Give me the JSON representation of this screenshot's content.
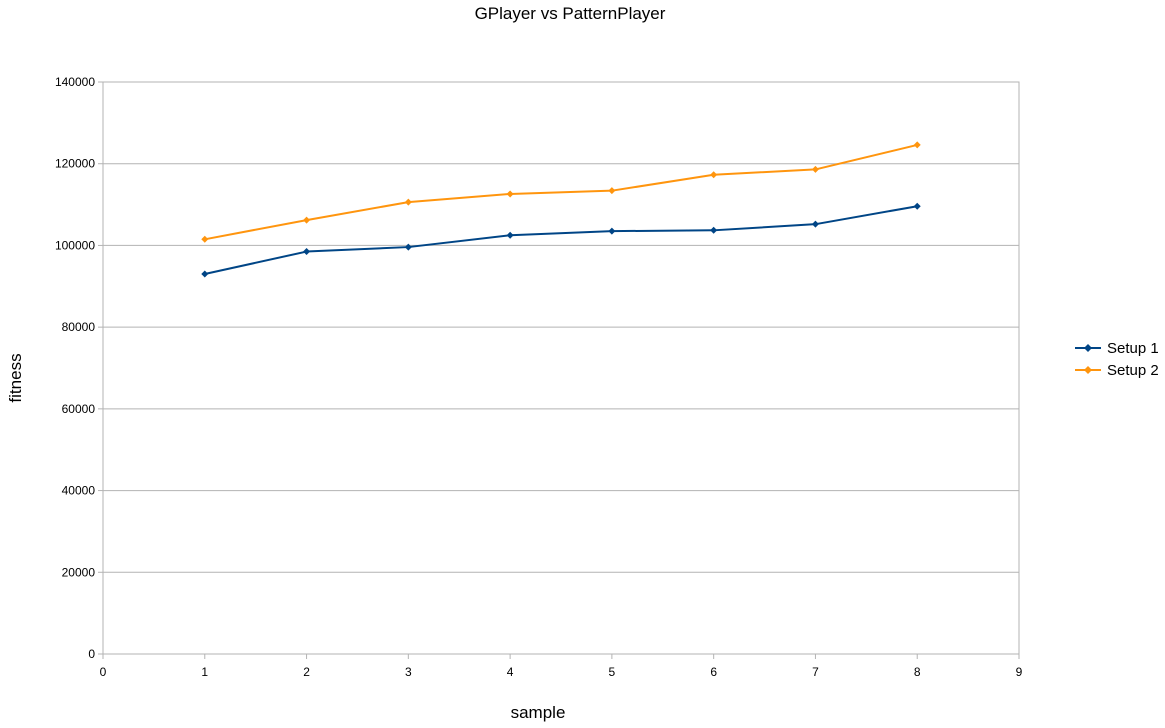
{
  "chart_data": {
    "type": "line",
    "title": "GPlayer vs PatternPlayer",
    "xlabel": "sample",
    "ylabel": "fitness",
    "xlim": [
      0,
      9
    ],
    "ylim": [
      0,
      140000
    ],
    "xticks": [
      0,
      1,
      2,
      3,
      4,
      5,
      6,
      7,
      8,
      9
    ],
    "yticks": [
      0,
      20000,
      40000,
      60000,
      80000,
      100000,
      120000,
      140000
    ],
    "grid": "horizontal",
    "legend_position": "right",
    "x": [
      1,
      2,
      3,
      4,
      5,
      6,
      7,
      8
    ],
    "series": [
      {
        "name": "Setup 1",
        "color": "#004586",
        "values": [
          93000,
          98500,
          99600,
          102500,
          103500,
          103700,
          105200,
          109600
        ]
      },
      {
        "name": "Setup 2",
        "color": "#ff950e",
        "values": [
          101500,
          106200,
          110600,
          112600,
          113400,
          117300,
          118600,
          124600
        ]
      }
    ]
  }
}
